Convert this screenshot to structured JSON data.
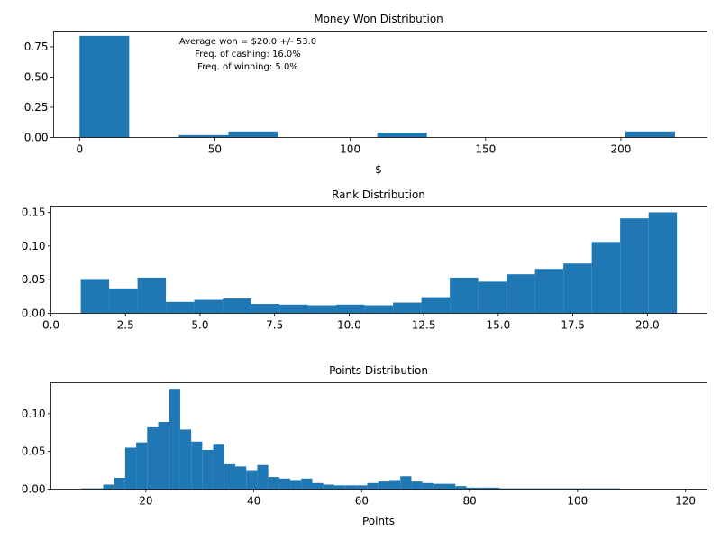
{
  "chart_data": [
    {
      "type": "bar",
      "title": "Money Won Distribution",
      "xlabel": "$",
      "ylabel": "",
      "xlim": [
        -9.58,
        231.8
      ],
      "ylim": [
        0,
        0.88
      ],
      "xticks": [
        0,
        50,
        100,
        150,
        200
      ],
      "yticks": [
        0.0,
        0.25,
        0.5,
        0.75
      ],
      "ytick_decimals": 2,
      "color": "#1f77b4",
      "bins": [
        {
          "x0": 0.0,
          "x1": 18.33,
          "value": 0.84
        },
        {
          "x0": 36.67,
          "x1": 55.0,
          "value": 0.02
        },
        {
          "x0": 55.0,
          "x1": 73.33,
          "value": 0.05
        },
        {
          "x0": 110.0,
          "x1": 128.33,
          "value": 0.04
        },
        {
          "x0": 201.67,
          "x1": 220.0,
          "value": 0.05
        }
      ],
      "annotations": [
        "Average won = $20.0 +/- 53.0",
        "Freq. of cashing: 16.0%",
        "Freq. of winning: 5.0%"
      ]
    },
    {
      "type": "bar",
      "title": "Rank Distribution",
      "xlabel": "",
      "ylabel": "",
      "xlim": [
        0.0,
        22.0
      ],
      "ylim": [
        0,
        0.158
      ],
      "xticks": [
        0.0,
        2.5,
        5.0,
        7.5,
        10.0,
        12.5,
        15.0,
        17.5,
        20.0
      ],
      "xtick_decimals": 1,
      "yticks": [
        0.0,
        0.05,
        0.1,
        0.15
      ],
      "ytick_decimals": 2,
      "color": "#1f77b4",
      "bin_start": 1.0,
      "bin_width": 0.952,
      "values": [
        0.051,
        0.037,
        0.053,
        0.017,
        0.02,
        0.022,
        0.014,
        0.013,
        0.012,
        0.013,
        0.012,
        0.016,
        0.024,
        0.053,
        0.047,
        0.058,
        0.066,
        0.074,
        0.106,
        0.141,
        0.15
      ]
    },
    {
      "type": "bar",
      "title": "Points Distribution",
      "xlabel": "Points",
      "ylabel": "",
      "xlim": [
        2.4,
        124.0
      ],
      "ylim": [
        0,
        0.141
      ],
      "xticks": [
        20,
        40,
        60,
        80,
        100,
        120
      ],
      "yticks": [
        0.0,
        0.05,
        0.1
      ],
      "ytick_decimals": 2,
      "color": "#1f77b4",
      "bin_start": 8.0,
      "bin_width": 2.04,
      "values": [
        0.001,
        0.001,
        0.006,
        0.015,
        0.055,
        0.062,
        0.082,
        0.089,
        0.133,
        0.079,
        0.063,
        0.052,
        0.06,
        0.033,
        0.03,
        0.025,
        0.032,
        0.016,
        0.014,
        0.012,
        0.014,
        0.008,
        0.006,
        0.005,
        0.005,
        0.005,
        0.008,
        0.01,
        0.012,
        0.017,
        0.01,
        0.008,
        0.007,
        0.007,
        0.004,
        0.002,
        0.002,
        0.002,
        0.001,
        0.001,
        0.001,
        0.001,
        0.001,
        0.001,
        0.001,
        0.001,
        0.001,
        0.001,
        0.001,
        0.0,
        0.0,
        0.0,
        0.0,
        0.0,
        0.0
      ]
    }
  ]
}
